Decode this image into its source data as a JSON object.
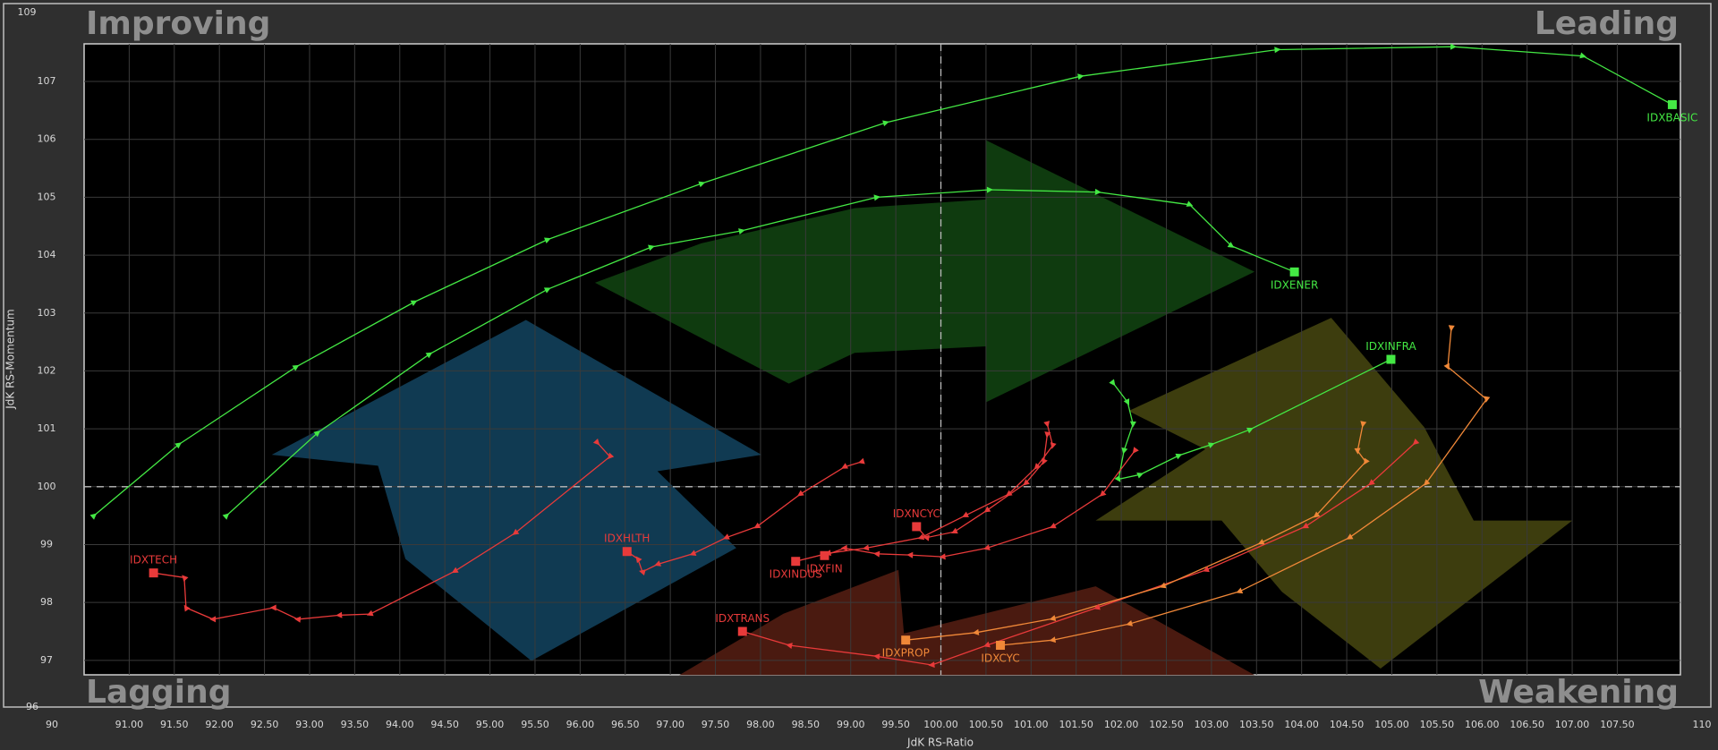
{
  "chart_data": {
    "type": "rrg",
    "xlabel": "JdK RS-Ratio",
    "ylabel": "JdK RS-Momentum",
    "quadrants": {
      "top_left": "Improving",
      "top_right": "Leading",
      "bottom_left": "Lagging",
      "bottom_right": "Weakening"
    },
    "xlim": [
      90.5,
      108.2
    ],
    "ylim": [
      96.75,
      107.65
    ],
    "xbreaks": [
      90,
      110
    ],
    "ybreaks": [
      96,
      109
    ],
    "reference": {
      "x": 100,
      "y": 100
    },
    "grid": true,
    "xticks": [
      {
        "value": 91,
        "label": "91.00"
      },
      {
        "value": 91.5,
        "label": "91.50"
      },
      {
        "value": 92,
        "label": "92.00"
      },
      {
        "value": 92.5,
        "label": "92.50"
      },
      {
        "value": 93,
        "label": "93.00"
      },
      {
        "value": 93.5,
        "label": "93.50"
      },
      {
        "value": 94,
        "label": "94.00"
      },
      {
        "value": 94.5,
        "label": "94.50"
      },
      {
        "value": 95,
        "label": "95.00"
      },
      {
        "value": 95.5,
        "label": "95.50"
      },
      {
        "value": 96,
        "label": "96.00"
      },
      {
        "value": 96.5,
        "label": "96.50"
      },
      {
        "value": 97,
        "label": "97.00"
      },
      {
        "value": 97.5,
        "label": "97.50"
      },
      {
        "value": 98,
        "label": "98.00"
      },
      {
        "value": 98.5,
        "label": "98.50"
      },
      {
        "value": 99,
        "label": "99.00"
      },
      {
        "value": 99.5,
        "label": "99.50"
      },
      {
        "value": 100,
        "label": "100.00"
      },
      {
        "value": 100.5,
        "label": "100.50"
      },
      {
        "value": 101,
        "label": "101.00"
      },
      {
        "value": 101.5,
        "label": "101.50"
      },
      {
        "value": 102,
        "label": "102.00"
      },
      {
        "value": 102.5,
        "label": "102.50"
      },
      {
        "value": 103,
        "label": "103.00"
      },
      {
        "value": 103.5,
        "label": "103.50"
      },
      {
        "value": 104,
        "label": "104.00"
      },
      {
        "value": 104.5,
        "label": "104.50"
      },
      {
        "value": 105,
        "label": "105.00"
      },
      {
        "value": 105.5,
        "label": "105.50"
      },
      {
        "value": 106,
        "label": "106.00"
      },
      {
        "value": 106.5,
        "label": "106.50"
      },
      {
        "value": 107,
        "label": "107.00"
      },
      {
        "value": 107.5,
        "label": "107.50"
      }
    ],
    "yticks": [
      97,
      98,
      99,
      100,
      101,
      102,
      103,
      104,
      105,
      106,
      107
    ],
    "series": [
      {
        "name": "IDXBASIC",
        "color": "#44e844",
        "x": [
          90.61,
          91.55,
          92.85,
          94.16,
          95.64,
          97.35,
          99.39,
          101.55,
          103.73,
          105.68,
          107.12,
          108.11
        ],
        "y": [
          99.5,
          100.73,
          102.07,
          103.19,
          104.27,
          105.24,
          106.29,
          107.09,
          107.55,
          107.6,
          107.44,
          106.6
        ]
      },
      {
        "name": "IDXENER",
        "color": "#44e844",
        "x": [
          92.08,
          93.09,
          94.33,
          95.64,
          96.79,
          97.79,
          99.29,
          100.54,
          101.74,
          102.76,
          103.22,
          103.92
        ],
        "y": [
          99.5,
          100.93,
          102.29,
          103.41,
          104.14,
          104.42,
          105.0,
          105.13,
          105.09,
          104.87,
          104.16,
          103.71
        ]
      },
      {
        "name": "IDXINFRA",
        "color": "#44e844",
        "x": [
          101.91,
          102.07,
          102.13,
          102.03,
          101.97,
          102.21,
          102.64,
          103.0,
          103.43,
          104.99
        ],
        "y": [
          101.79,
          101.46,
          101.08,
          100.62,
          100.13,
          100.21,
          100.54,
          100.73,
          100.99,
          102.2
        ]
      },
      {
        "name": "IDXTECH",
        "color": "#e83a3a",
        "x": [
          96.19,
          96.33,
          95.28,
          94.61,
          93.67,
          93.33,
          92.87,
          92.6,
          91.93,
          91.63,
          91.61,
          91.27
        ],
        "y": [
          100.76,
          100.52,
          99.2,
          98.54,
          97.8,
          97.78,
          97.71,
          97.91,
          97.71,
          97.91,
          98.43,
          98.51
        ]
      },
      {
        "name": "IDXHLTH",
        "color": "#e83a3a",
        "x": [
          99.12,
          98.93,
          98.44,
          97.96,
          97.62,
          97.25,
          96.86,
          96.69,
          96.64,
          96.52
        ],
        "y": [
          100.43,
          100.34,
          99.87,
          99.31,
          99.12,
          98.84,
          98.66,
          98.53,
          98.75,
          98.88
        ]
      },
      {
        "name": "IDXINDUS",
        "color": "#e83a3a",
        "x": [
          101.18,
          101.24,
          101.06,
          100.75,
          100.27,
          99.78,
          99.17,
          98.75,
          98.39
        ],
        "y": [
          101.08,
          100.71,
          100.34,
          99.87,
          99.5,
          99.12,
          98.94,
          98.85,
          98.71
        ]
      },
      {
        "name": "IDXFIN",
        "color": "#e83a3a",
        "x": [
          102.15,
          101.79,
          101.24,
          100.51,
          100.02,
          99.66,
          99.29,
          98.93,
          98.71
        ],
        "y": [
          100.62,
          99.87,
          99.31,
          98.94,
          98.79,
          98.82,
          98.84,
          98.94,
          98.81
        ]
      },
      {
        "name": "IDXNCYC",
        "color": "#e83a3a",
        "x": [
          101.18,
          101.14,
          100.94,
          100.51,
          100.15,
          99.84,
          99.73
        ],
        "y": [
          100.9,
          100.43,
          100.06,
          99.59,
          99.22,
          99.12,
          99.31
        ]
      },
      {
        "name": "IDXTRANS",
        "color": "#e83a3a",
        "x": [
          105.26,
          104.77,
          104.04,
          102.94,
          101.73,
          100.51,
          99.9,
          99.29,
          98.32,
          97.8
        ],
        "y": [
          100.76,
          100.06,
          99.31,
          98.56,
          97.91,
          97.26,
          96.92,
          97.07,
          97.26,
          97.5
        ]
      },
      {
        "name": "IDXPROP",
        "color": "#f08838",
        "x": [
          104.68,
          104.62,
          104.71,
          104.16,
          103.55,
          102.46,
          101.24,
          100.39,
          99.61
        ],
        "y": [
          101.08,
          100.62,
          100.43,
          99.5,
          99.03,
          98.28,
          97.72,
          97.48,
          97.35
        ]
      },
      {
        "name": "IDXCYC",
        "color": "#f08838",
        "x": [
          105.66,
          105.62,
          106.05,
          105.38,
          104.53,
          103.31,
          102.09,
          101.24,
          100.66
        ],
        "y": [
          102.74,
          102.07,
          101.51,
          100.06,
          99.12,
          98.19,
          97.63,
          97.35,
          97.26
        ]
      }
    ]
  }
}
